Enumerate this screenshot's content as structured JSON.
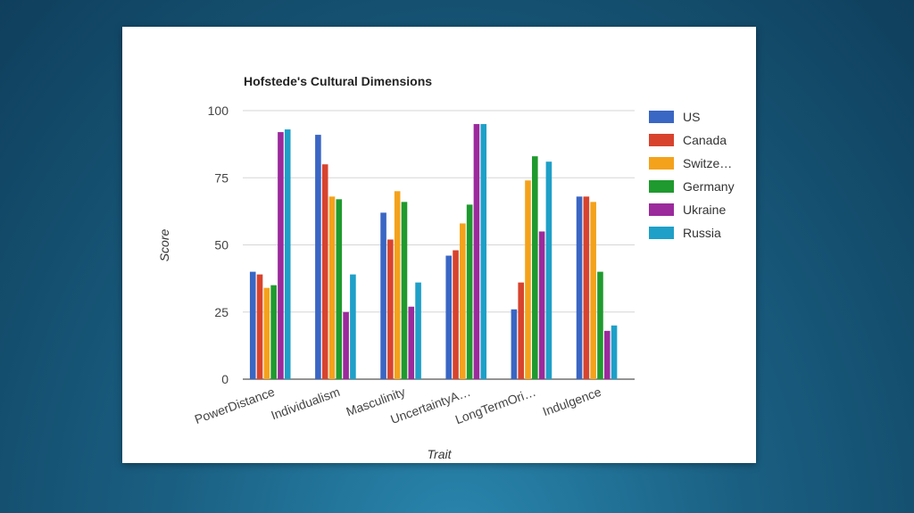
{
  "chart_data": {
    "type": "bar",
    "title": "Hofstede's Cultural Dimensions",
    "xlabel": "Trait",
    "ylabel": "Score",
    "ylim": [
      0,
      100
    ],
    "yticks": [
      0,
      25,
      50,
      75,
      100
    ],
    "grid": true,
    "legend_position": "right",
    "categories": [
      "PowerDistance",
      "Individualism",
      "Masculinity",
      "UncertaintyA…",
      "LongTermOri…",
      "Indulgence"
    ],
    "series": [
      {
        "name": "US",
        "legend_label": "US",
        "color": "#3a66c4",
        "values": [
          40,
          91,
          62,
          46,
          26,
          68
        ]
      },
      {
        "name": "Canada",
        "legend_label": "Canada",
        "color": "#d8432e",
        "values": [
          39,
          80,
          52,
          48,
          36,
          68
        ]
      },
      {
        "name": "Switzerland",
        "legend_label": "Switze…",
        "color": "#f4a21b",
        "values": [
          34,
          68,
          70,
          58,
          74,
          66
        ]
      },
      {
        "name": "Germany",
        "legend_label": "Germany",
        "color": "#1f9a2e",
        "values": [
          35,
          67,
          66,
          65,
          83,
          40
        ]
      },
      {
        "name": "Ukraine",
        "legend_label": "Ukraine",
        "color": "#9b2a9c",
        "values": [
          92,
          25,
          27,
          95,
          55,
          18
        ]
      },
      {
        "name": "Russia",
        "legend_label": "Russia",
        "color": "#1ea0c8",
        "values": [
          93,
          39,
          36,
          95,
          81,
          20
        ]
      }
    ]
  }
}
